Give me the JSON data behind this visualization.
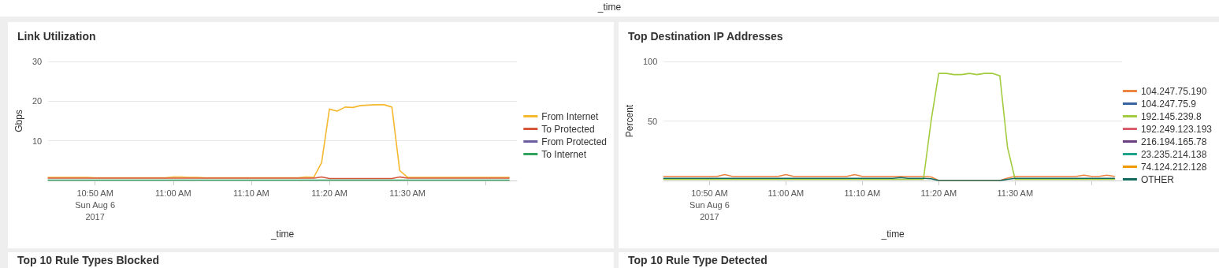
{
  "chart_data": [
    {
      "type": "other",
      "xlabel": "_time"
    },
    {
      "type": "line",
      "title": "Link Utilization",
      "xlabel": "_time",
      "ylabel": "Gbps",
      "x": [
        "2017-08-06T10:44",
        "2017-08-06T10:45",
        "2017-08-06T10:46",
        "2017-08-06T10:47",
        "2017-08-06T10:48",
        "2017-08-06T10:49",
        "2017-08-06T10:50",
        "2017-08-06T10:51",
        "2017-08-06T10:52",
        "2017-08-06T10:53",
        "2017-08-06T10:54",
        "2017-08-06T10:55",
        "2017-08-06T10:56",
        "2017-08-06T10:57",
        "2017-08-06T10:58",
        "2017-08-06T10:59",
        "2017-08-06T11:00",
        "2017-08-06T11:01",
        "2017-08-06T11:02",
        "2017-08-06T11:03",
        "2017-08-06T11:04",
        "2017-08-06T11:05",
        "2017-08-06T11:06",
        "2017-08-06T11:07",
        "2017-08-06T11:08",
        "2017-08-06T11:09",
        "2017-08-06T11:10",
        "2017-08-06T11:11",
        "2017-08-06T11:12",
        "2017-08-06T11:13",
        "2017-08-06T11:14",
        "2017-08-06T11:15",
        "2017-08-06T11:16",
        "2017-08-06T11:17",
        "2017-08-06T11:18",
        "2017-08-06T11:19",
        "2017-08-06T11:20",
        "2017-08-06T11:21",
        "2017-08-06T11:22",
        "2017-08-06T11:23",
        "2017-08-06T11:24",
        "2017-08-06T11:25",
        "2017-08-06T11:26",
        "2017-08-06T11:27",
        "2017-08-06T11:28",
        "2017-08-06T11:29",
        "2017-08-06T11:30",
        "2017-08-06T11:31",
        "2017-08-06T11:32",
        "2017-08-06T11:33",
        "2017-08-06T11:34",
        "2017-08-06T11:35",
        "2017-08-06T11:36",
        "2017-08-06T11:37",
        "2017-08-06T11:38",
        "2017-08-06T11:39",
        "2017-08-06T11:40",
        "2017-08-06T11:41",
        "2017-08-06T11:42",
        "2017-08-06T11:43"
      ],
      "series": [
        {
          "name": "From Internet",
          "color": "#f5b82e",
          "values": [
            0.8,
            0.8,
            0.8,
            0.8,
            0.8,
            0.8,
            0.7,
            0.7,
            0.7,
            0.7,
            0.7,
            0.7,
            0.7,
            0.7,
            0.7,
            0.7,
            0.9,
            0.9,
            0.8,
            0.8,
            0.7,
            0.7,
            0.7,
            0.7,
            0.7,
            0.7,
            0.7,
            0.7,
            0.7,
            0.7,
            0.7,
            0.7,
            0.7,
            0.9,
            0.8,
            4.5,
            18,
            17.5,
            18.5,
            18.4,
            18.9,
            19,
            19.1,
            19.1,
            18.5,
            2.5,
            0.8,
            0.8,
            0.8,
            0.8,
            0.8,
            0.8,
            0.8,
            0.8,
            0.8,
            0.8,
            0.8,
            0.8,
            0.8,
            0.8
          ]
        },
        {
          "name": "To Protected",
          "color": "#d6563c",
          "values": [
            0.6,
            0.6,
            0.6,
            0.6,
            0.6,
            0.6,
            0.6,
            0.6,
            0.6,
            0.6,
            0.6,
            0.6,
            0.6,
            0.6,
            0.6,
            0.6,
            0.6,
            0.6,
            0.6,
            0.6,
            0.6,
            0.6,
            0.6,
            0.6,
            0.6,
            0.6,
            0.6,
            0.6,
            0.6,
            0.6,
            0.6,
            0.6,
            0.6,
            0.6,
            0.6,
            0.9,
            0.5,
            0.5,
            0.5,
            0.5,
            0.5,
            0.5,
            0.5,
            0.5,
            0.5,
            0.9,
            0.6,
            0.6,
            0.6,
            0.6,
            0.6,
            0.6,
            0.6,
            0.6,
            0.6,
            0.6,
            0.6,
            0.6,
            0.6,
            0.6
          ]
        },
        {
          "name": "From Protected",
          "color": "#6a5c9e",
          "values": [
            null,
            null,
            null,
            null,
            null,
            null,
            null,
            null,
            null,
            null,
            null,
            null,
            null,
            null,
            null,
            null,
            null,
            null,
            null,
            null,
            null,
            null,
            null,
            null,
            null,
            null,
            null,
            null,
            null,
            null,
            null,
            null,
            null,
            null,
            null,
            null,
            null,
            null,
            null,
            null,
            null,
            null,
            null,
            null,
            null,
            null,
            null,
            null,
            null,
            null,
            null,
            null,
            null,
            null,
            null,
            null,
            null,
            null,
            null,
            null
          ]
        },
        {
          "name": "To Internet",
          "color": "#31a35f",
          "values": [
            0.1,
            0.1,
            0.1,
            0.1,
            0.1,
            0.1,
            0.1,
            0.1,
            0.1,
            0.1,
            0.1,
            0.1,
            0.1,
            0.1,
            0.1,
            0.1,
            0.1,
            0.1,
            0.1,
            0.1,
            0.1,
            0.1,
            0.1,
            0.1,
            0.1,
            0.1,
            0.1,
            0.1,
            0.1,
            0.1,
            0.1,
            0.1,
            0.1,
            0.1,
            0.1,
            0.1,
            0.1,
            0.1,
            0.1,
            0.1,
            0.1,
            0.1,
            0.1,
            0.1,
            0.1,
            0.1,
            0.1,
            0.1,
            0.1,
            0.1,
            0.1,
            0.1,
            0.1,
            0.1,
            0.1,
            0.1,
            0.1,
            0.1,
            0.1,
            0.1
          ]
        }
      ],
      "xlim": [
        "2017-08-06T10:44",
        "2017-08-06T11:44"
      ],
      "xticks": [
        {
          "value": "2017-08-06T10:50",
          "label": "10:50 AM\nSun Aug 6\n2017"
        },
        {
          "value": "2017-08-06T11:00",
          "label": "11:00 AM"
        },
        {
          "value": "2017-08-06T11:10",
          "label": "11:10 AM"
        },
        {
          "value": "2017-08-06T11:20",
          "label": "11:20 AM"
        },
        {
          "value": "2017-08-06T11:30",
          "label": "11:30 AM"
        },
        {
          "value": "2017-08-06T11:40",
          "label": null
        }
      ],
      "ylim": [
        0,
        30
      ],
      "yticks": [
        10,
        20,
        30
      ],
      "grid": "y",
      "legend": "right",
      "marker": "none"
    },
    {
      "type": "line",
      "title": "Top Destination IP Addresses",
      "xlabel": "_time",
      "ylabel": "Percent",
      "x": [
        "2017-08-06T10:44",
        "2017-08-06T10:45",
        "2017-08-06T10:46",
        "2017-08-06T10:47",
        "2017-08-06T10:48",
        "2017-08-06T10:49",
        "2017-08-06T10:50",
        "2017-08-06T10:51",
        "2017-08-06T10:52",
        "2017-08-06T10:53",
        "2017-08-06T10:54",
        "2017-08-06T10:55",
        "2017-08-06T10:56",
        "2017-08-06T10:57",
        "2017-08-06T10:58",
        "2017-08-06T10:59",
        "2017-08-06T11:00",
        "2017-08-06T11:01",
        "2017-08-06T11:02",
        "2017-08-06T11:03",
        "2017-08-06T11:04",
        "2017-08-06T11:05",
        "2017-08-06T11:06",
        "2017-08-06T11:07",
        "2017-08-06T11:08",
        "2017-08-06T11:09",
        "2017-08-06T11:10",
        "2017-08-06T11:11",
        "2017-08-06T11:12",
        "2017-08-06T11:13",
        "2017-08-06T11:14",
        "2017-08-06T11:15",
        "2017-08-06T11:16",
        "2017-08-06T11:17",
        "2017-08-06T11:18",
        "2017-08-06T11:19",
        "2017-08-06T11:20",
        "2017-08-06T11:21",
        "2017-08-06T11:22",
        "2017-08-06T11:23",
        "2017-08-06T11:24",
        "2017-08-06T11:25",
        "2017-08-06T11:26",
        "2017-08-06T11:27",
        "2017-08-06T11:28",
        "2017-08-06T11:29",
        "2017-08-06T11:30",
        "2017-08-06T11:31",
        "2017-08-06T11:32",
        "2017-08-06T11:33",
        "2017-08-06T11:34",
        "2017-08-06T11:35",
        "2017-08-06T11:36",
        "2017-08-06T11:37",
        "2017-08-06T11:38",
        "2017-08-06T11:39",
        "2017-08-06T11:40",
        "2017-08-06T11:41",
        "2017-08-06T11:42",
        "2017-08-06T11:43"
      ],
      "series": [
        {
          "name": "104.247.75.190",
          "color": "#ed8440",
          "values": [
            3.5,
            3.5,
            3.5,
            3.5,
            3.5,
            3.5,
            3.5,
            3.5,
            5,
            3.5,
            3.5,
            3.5,
            3.5,
            3.5,
            3.5,
            3.5,
            5,
            3.5,
            3.5,
            3.5,
            3.5,
            3.5,
            3.5,
            3.5,
            3.5,
            5,
            3.5,
            3.5,
            3.5,
            3.5,
            3.5,
            3.5,
            3.5,
            3.5,
            3.5,
            3,
            0,
            0,
            0,
            0,
            0,
            0,
            0,
            0,
            0,
            2,
            3.5,
            3.5,
            3.5,
            3.5,
            3.5,
            3.5,
            3.5,
            3.5,
            3.5,
            4.5,
            3.5,
            3.5,
            4.5,
            3.5
          ]
        },
        {
          "name": "104.247.75.9",
          "color": "#3863a0",
          "values": [
            null,
            null,
            null,
            null,
            null,
            null,
            null,
            null,
            null,
            null,
            null,
            null,
            null,
            null,
            null,
            null,
            null,
            null,
            null,
            null,
            null,
            null,
            null,
            null,
            null,
            null,
            null,
            null,
            null,
            null,
            null,
            null,
            null,
            null,
            null,
            null,
            null,
            null,
            null,
            null,
            null,
            null,
            null,
            null,
            null,
            null,
            null,
            null,
            null,
            null,
            null,
            null,
            null,
            null,
            null,
            null,
            null,
            null,
            null,
            null
          ]
        },
        {
          "name": "192.145.239.8",
          "color": "#a2cc3e",
          "values": [
            1,
            1,
            1,
            1,
            1,
            1,
            1,
            1,
            1,
            1,
            1,
            1,
            1,
            1,
            1,
            1,
            1,
            1,
            1,
            1,
            1,
            1,
            1,
            1,
            1,
            1,
            1,
            1,
            1,
            1,
            1,
            1,
            1,
            1,
            1,
            50,
            90,
            90,
            89,
            89,
            90,
            89,
            90,
            90,
            88,
            28,
            1,
            1,
            1,
            1,
            1,
            1,
            1,
            1,
            1,
            1,
            1,
            1,
            1,
            1
          ]
        },
        {
          "name": "192.249.123.193",
          "color": "#d85d6d",
          "values": [
            null,
            null,
            null,
            null,
            null,
            null,
            null,
            null,
            null,
            null,
            null,
            null,
            null,
            null,
            null,
            null,
            null,
            null,
            null,
            null,
            null,
            null,
            null,
            null,
            null,
            null,
            null,
            null,
            null,
            null,
            null,
            null,
            null,
            null,
            null,
            null,
            null,
            null,
            null,
            null,
            null,
            null,
            null,
            null,
            null,
            null,
            null,
            null,
            null,
            null,
            null,
            null,
            null,
            null,
            null,
            null,
            null,
            null,
            null,
            null
          ]
        },
        {
          "name": "216.194.165.78",
          "color": "#6a3d7e",
          "values": [
            null,
            null,
            null,
            null,
            null,
            null,
            null,
            null,
            null,
            null,
            null,
            null,
            null,
            null,
            null,
            null,
            null,
            null,
            null,
            null,
            null,
            null,
            null,
            null,
            null,
            null,
            null,
            null,
            null,
            null,
            null,
            null,
            null,
            null,
            null,
            null,
            null,
            null,
            null,
            null,
            null,
            null,
            null,
            null,
            null,
            null,
            null,
            null,
            null,
            null,
            null,
            null,
            null,
            null,
            null,
            null,
            null,
            null,
            null,
            null
          ]
        },
        {
          "name": "23.235.214.138",
          "color": "#1ea38b",
          "values": [
            null,
            null,
            null,
            null,
            null,
            null,
            null,
            null,
            null,
            null,
            null,
            null,
            null,
            null,
            null,
            null,
            null,
            null,
            null,
            null,
            null,
            null,
            null,
            null,
            null,
            null,
            null,
            null,
            null,
            null,
            null,
            null,
            null,
            null,
            null,
            null,
            null,
            null,
            null,
            null,
            null,
            null,
            null,
            null,
            null,
            null,
            null,
            null,
            null,
            null,
            null,
            null,
            null,
            null,
            null,
            null,
            null,
            null,
            null,
            null
          ]
        },
        {
          "name": "74.124.212.128",
          "color": "#f09a00",
          "values": [
            null,
            null,
            null,
            null,
            null,
            null,
            null,
            null,
            null,
            null,
            null,
            null,
            null,
            null,
            null,
            null,
            null,
            null,
            null,
            null,
            null,
            null,
            null,
            null,
            null,
            null,
            null,
            null,
            null,
            null,
            null,
            null,
            null,
            null,
            null,
            null,
            null,
            null,
            null,
            null,
            null,
            null,
            null,
            null,
            null,
            null,
            null,
            null,
            null,
            null,
            null,
            null,
            null,
            null,
            null,
            null,
            null,
            null,
            null,
            null
          ]
        },
        {
          "name": "OTHER",
          "color": "#116b5c",
          "values": [
            1.8,
            1.8,
            1.8,
            1.8,
            1.8,
            1.8,
            1.8,
            1.8,
            1.8,
            1.8,
            1.8,
            1.8,
            1.8,
            1.8,
            1.8,
            1.8,
            1.8,
            1.8,
            1.8,
            1.8,
            1.8,
            1.8,
            1.8,
            1.8,
            1.8,
            1.8,
            1.8,
            1.8,
            1.8,
            1.8,
            1.8,
            2.5,
            1.8,
            1.8,
            1.8,
            1.5,
            0,
            0,
            0,
            0,
            0,
            0,
            0,
            0,
            0,
            1,
            1.8,
            1.8,
            1.8,
            1.8,
            1.8,
            1.8,
            1.8,
            1.8,
            1.8,
            1.8,
            1.8,
            1.8,
            1.8,
            1.8
          ]
        }
      ],
      "xlim": [
        "2017-08-06T10:44",
        "2017-08-06T11:44"
      ],
      "xticks": [
        {
          "value": "2017-08-06T10:50",
          "label": "10:50 AM\nSun Aug 6\n2017"
        },
        {
          "value": "2017-08-06T11:00",
          "label": "11:00 AM"
        },
        {
          "value": "2017-08-06T11:10",
          "label": "11:10 AM"
        },
        {
          "value": "2017-08-06T11:20",
          "label": "11:20 AM"
        },
        {
          "value": "2017-08-06T11:30",
          "label": "11:30 AM"
        },
        {
          "value": "2017-08-06T11:40",
          "label": null
        }
      ],
      "ylim": [
        0,
        100
      ],
      "yticks": [
        50,
        100
      ],
      "grid": "y",
      "legend": "right",
      "marker": "none"
    },
    {
      "type": "other",
      "title": "Top 10 Rule Types Blocked"
    },
    {
      "type": "other",
      "title": "Top 10 Rule Type Detected"
    }
  ]
}
